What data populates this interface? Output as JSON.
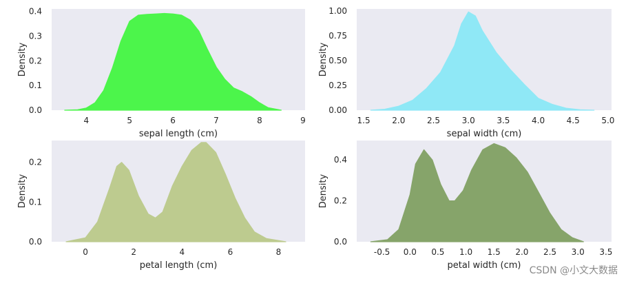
{
  "watermark": "CSDN @小文大数据",
  "chart_data": [
    {
      "type": "area",
      "xlabel": "sepal length (cm)",
      "ylabel": "Density",
      "xlim": [
        3.2,
        9.05
      ],
      "ylim": [
        0,
        0.41
      ],
      "xticks": [
        4,
        5,
        6,
        7,
        8,
        9
      ],
      "yticks": [
        0.0,
        0.1,
        0.2,
        0.3,
        0.4
      ],
      "ytick_labels": [
        "0.0",
        "0.1",
        "0.2",
        "0.3",
        "0.4"
      ],
      "fill_color": "#4cf54b",
      "series": [
        {
          "x": [
            3.5,
            3.8,
            4.0,
            4.2,
            4.4,
            4.6,
            4.8,
            5.0,
            5.2,
            5.4,
            5.6,
            5.8,
            6.0,
            6.2,
            6.4,
            6.6,
            6.8,
            7.0,
            7.2,
            7.4,
            7.6,
            7.8,
            8.0,
            8.2,
            8.5
          ],
          "y": [
            0.0,
            0.002,
            0.009,
            0.03,
            0.08,
            0.17,
            0.28,
            0.36,
            0.385,
            0.388,
            0.39,
            0.392,
            0.39,
            0.385,
            0.365,
            0.32,
            0.245,
            0.175,
            0.125,
            0.09,
            0.075,
            0.055,
            0.03,
            0.01,
            0.0
          ]
        }
      ]
    },
    {
      "type": "area",
      "xlabel": "sepal width (cm)",
      "ylabel": "Density",
      "xlim": [
        1.4,
        5.05
      ],
      "ylim": [
        0,
        1.02
      ],
      "xticks": [
        1.5,
        2.0,
        2.5,
        3.0,
        3.5,
        4.0,
        4.5,
        5.0
      ],
      "xtick_labels": [
        "1.5",
        "2.0",
        "2.5",
        "3.0",
        "3.5",
        "4.0",
        "4.5",
        "5.0"
      ],
      "yticks": [
        0.0,
        0.25,
        0.5,
        0.75,
        1.0
      ],
      "ytick_labels": [
        "0.00",
        "0.25",
        "0.50",
        "0.75",
        "1.00"
      ],
      "fill_color": "#8fe8f6",
      "series": [
        {
          "x": [
            1.6,
            1.8,
            2.0,
            2.2,
            2.4,
            2.6,
            2.8,
            2.9,
            3.0,
            3.1,
            3.2,
            3.4,
            3.6,
            3.8,
            4.0,
            4.2,
            4.4,
            4.6,
            4.8
          ],
          "y": [
            0.0,
            0.01,
            0.04,
            0.1,
            0.22,
            0.38,
            0.65,
            0.87,
            0.99,
            0.95,
            0.8,
            0.58,
            0.41,
            0.26,
            0.12,
            0.06,
            0.02,
            0.005,
            0.0
          ]
        }
      ]
    },
    {
      "type": "area",
      "xlabel": "petal length (cm)",
      "ylabel": "Density",
      "xlim": [
        -1.4,
        9.1
      ],
      "ylim": [
        0,
        0.255
      ],
      "xticks": [
        0,
        2,
        4,
        6,
        8
      ],
      "yticks": [
        0.0,
        0.1,
        0.2
      ],
      "ytick_labels": [
        "0.0",
        "0.1",
        "0.2"
      ],
      "fill_color": "#bdcb8f",
      "series": [
        {
          "x": [
            -0.8,
            0.0,
            0.5,
            1.0,
            1.3,
            1.5,
            1.8,
            2.2,
            2.6,
            2.9,
            3.2,
            3.6,
            4.0,
            4.4,
            4.8,
            5.0,
            5.4,
            5.8,
            6.2,
            6.6,
            7.0,
            7.5,
            8.3
          ],
          "y": [
            0.0,
            0.01,
            0.05,
            0.135,
            0.19,
            0.2,
            0.18,
            0.115,
            0.07,
            0.06,
            0.075,
            0.14,
            0.19,
            0.23,
            0.25,
            0.25,
            0.225,
            0.17,
            0.11,
            0.06,
            0.025,
            0.008,
            0.0
          ]
        }
      ]
    },
    {
      "type": "area",
      "xlabel": "petal width (cm)",
      "ylabel": "Density",
      "xlim": [
        -0.95,
        3.6
      ],
      "ylim": [
        0,
        0.495
      ],
      "xticks": [
        -0.5,
        0.0,
        0.5,
        1.0,
        1.5,
        2.0,
        2.5,
        3.0,
        3.5
      ],
      "xtick_labels": [
        "-0.5",
        "0.0",
        "0.5",
        "1.0",
        "1.5",
        "2.0",
        "2.5",
        "3.0",
        "3.5"
      ],
      "yticks": [
        0.0,
        0.2,
        0.4
      ],
      "ytick_labels": [
        "0.0",
        "0.2",
        "0.4"
      ],
      "fill_color": "#86a46a",
      "series": [
        {
          "x": [
            -0.7,
            -0.4,
            -0.2,
            0.0,
            0.1,
            0.25,
            0.4,
            0.55,
            0.7,
            0.8,
            0.95,
            1.1,
            1.3,
            1.5,
            1.7,
            1.9,
            2.1,
            2.3,
            2.5,
            2.7,
            2.9,
            3.1
          ],
          "y": [
            0.0,
            0.01,
            0.06,
            0.23,
            0.38,
            0.45,
            0.4,
            0.28,
            0.2,
            0.2,
            0.25,
            0.35,
            0.45,
            0.48,
            0.46,
            0.41,
            0.34,
            0.24,
            0.14,
            0.06,
            0.02,
            0.0
          ]
        }
      ]
    }
  ]
}
